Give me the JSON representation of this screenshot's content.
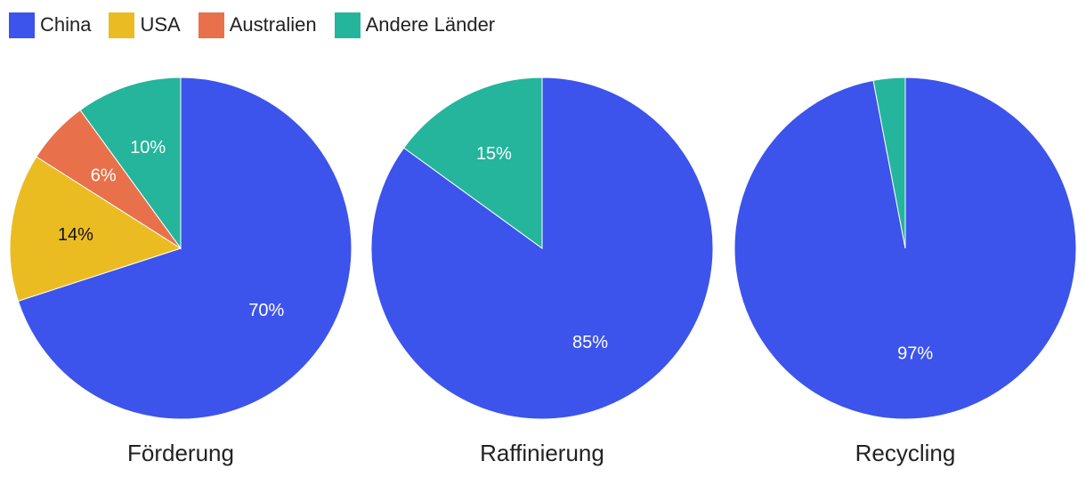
{
  "colors": {
    "China": "#3c54eb",
    "USA": "#ebbc22",
    "Australien": "#e8704a",
    "Andere Länder": "#24b59c"
  },
  "legend": {
    "items": [
      {
        "label": "China",
        "color": "#3c54eb"
      },
      {
        "label": "USA",
        "color": "#ebbc22"
      },
      {
        "label": "Australien",
        "color": "#e8704a"
      },
      {
        "label": "Andere Länder",
        "color": "#24b59c"
      }
    ],
    "placement": "top-left"
  },
  "chart_data": [
    {
      "type": "pie",
      "title": "Förderung",
      "slices": [
        {
          "name": "China",
          "value": 70,
          "label": "70%"
        },
        {
          "name": "USA",
          "value": 14,
          "label": "14%"
        },
        {
          "name": "Australien",
          "value": 6,
          "label": "6%"
        },
        {
          "name": "Andere Länder",
          "value": 10,
          "label": "10%"
        }
      ]
    },
    {
      "type": "pie",
      "title": "Raffinierung",
      "slices": [
        {
          "name": "China",
          "value": 85,
          "label": "85%"
        },
        {
          "name": "Andere Länder",
          "value": 15,
          "label": "15%"
        }
      ]
    },
    {
      "type": "pie",
      "title": "Recycling",
      "slices": [
        {
          "name": "China",
          "value": 97,
          "label": "97%"
        },
        {
          "name": "Andere Länder",
          "value": 3,
          "label": ""
        }
      ]
    }
  ]
}
